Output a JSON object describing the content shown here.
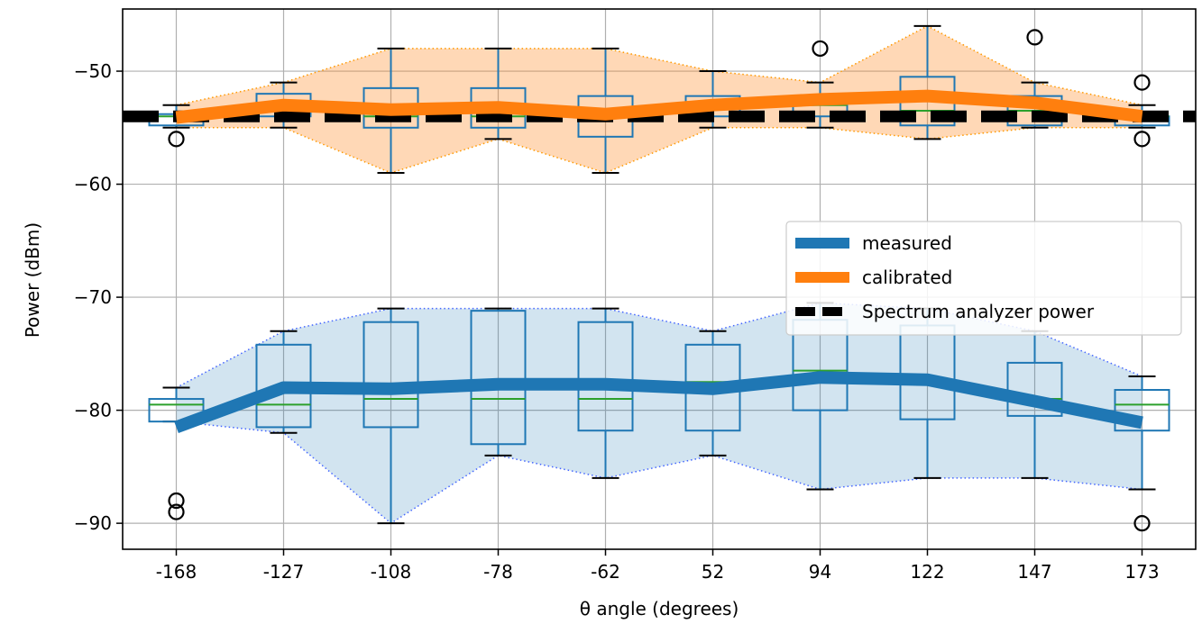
{
  "chart_data": {
    "type": "box",
    "categories": [
      "-168",
      "-127",
      "-108",
      "-78",
      "-62",
      "52",
      "94",
      "122",
      "147",
      "173"
    ],
    "xlabel": "θ angle (degrees)",
    "ylabel": "Power (dBm)",
    "ylim": [
      -92.3,
      -44.5
    ],
    "yticks": [
      -90,
      -80,
      -70,
      -60,
      -50
    ],
    "ytick_labels": [
      "−90",
      "−80",
      "−70",
      "−60",
      "−50"
    ],
    "grid": true,
    "legend_position": "center-right",
    "series": [
      {
        "name": "measured",
        "color": "#1f77b4",
        "line": [
          -81.5,
          -78.0,
          -78.1,
          -77.7,
          -77.7,
          -78.1,
          -77.1,
          -77.3,
          -79.2,
          -81.1
        ],
        "band_upper": [
          -78,
          -73,
          -71,
          -71,
          -71,
          -73,
          -70.5,
          -71,
          -73,
          -77
        ],
        "band_lower": [
          -81,
          -82,
          -90,
          -84,
          -86,
          -84,
          -87,
          -86,
          -86,
          -87
        ],
        "boxes": [
          {
            "whisker_low": -81,
            "q1": -81,
            "median": -79.5,
            "q3": -79,
            "whisker_high": -78,
            "fliers": [
              -88,
              -89
            ]
          },
          {
            "whisker_low": -82,
            "q1": -81.5,
            "median": -79.5,
            "q3": -74.2,
            "whisker_high": -73,
            "fliers": []
          },
          {
            "whisker_low": -90,
            "q1": -81.5,
            "median": -79,
            "q3": -72.2,
            "whisker_high": -71,
            "fliers": []
          },
          {
            "whisker_low": -84,
            "q1": -83,
            "median": -79,
            "q3": -71.2,
            "whisker_high": -71,
            "fliers": []
          },
          {
            "whisker_low": -86,
            "q1": -81.8,
            "median": -79,
            "q3": -72.2,
            "whisker_high": -71,
            "fliers": []
          },
          {
            "whisker_low": -84,
            "q1": -81.8,
            "median": -77.5,
            "q3": -74.2,
            "whisker_high": -73,
            "fliers": []
          },
          {
            "whisker_low": -87,
            "q1": -80,
            "median": -76.5,
            "q3": -72,
            "whisker_high": -70.5,
            "fliers": []
          },
          {
            "whisker_low": -86,
            "q1": -80.8,
            "median": -77.5,
            "q3": -72.5,
            "whisker_high": -71,
            "fliers": []
          },
          {
            "whisker_low": -86,
            "q1": -80.5,
            "median": -79,
            "q3": -75.8,
            "whisker_high": -73,
            "fliers": []
          },
          {
            "whisker_low": -87,
            "q1": -81.8,
            "median": -79.5,
            "q3": -78.2,
            "whisker_high": -77,
            "fliers": [
              -90
            ]
          }
        ]
      },
      {
        "name": "calibrated",
        "color": "#ff7f0e",
        "line": [
          -54.1,
          -53.0,
          -53.4,
          -53.2,
          -53.8,
          -53.0,
          -52.5,
          -52.2,
          -52.8,
          -54.0
        ],
        "band_upper": [
          -53,
          -51,
          -48,
          -48,
          -48,
          -50,
          -51,
          -46,
          -51,
          -53
        ],
        "band_lower": [
          -55,
          -55,
          -59,
          -56,
          -59,
          -55,
          -55,
          -56,
          -55,
          -55
        ],
        "boxes": [
          {
            "whisker_low": -55,
            "q1": -54.8,
            "median": -54,
            "q3": -53.8,
            "whisker_high": -53,
            "fliers": [
              -56
            ]
          },
          {
            "whisker_low": -55,
            "q1": -54,
            "median": -53.5,
            "q3": -52,
            "whisker_high": -51,
            "fliers": []
          },
          {
            "whisker_low": -59,
            "q1": -55,
            "median": -54,
            "q3": -51.5,
            "whisker_high": -48,
            "fliers": []
          },
          {
            "whisker_low": -56,
            "q1": -55,
            "median": -54,
            "q3": -51.5,
            "whisker_high": -48,
            "fliers": []
          },
          {
            "whisker_low": -59,
            "q1": -55.8,
            "median": -54,
            "q3": -52.2,
            "whisker_high": -48,
            "fliers": []
          },
          {
            "whisker_low": -55,
            "q1": -54,
            "median": -53,
            "q3": -52.2,
            "whisker_high": -50,
            "fliers": []
          },
          {
            "whisker_low": -55,
            "q1": -54,
            "median": -53,
            "q3": -52.5,
            "whisker_high": -51,
            "fliers": [
              -48
            ]
          },
          {
            "whisker_low": -56,
            "q1": -54.8,
            "median": -53.5,
            "q3": -50.5,
            "whisker_high": -46,
            "fliers": []
          },
          {
            "whisker_low": -55,
            "q1": -54.8,
            "median": -53.5,
            "q3": -52.2,
            "whisker_high": -51,
            "fliers": [
              -47
            ]
          },
          {
            "whisker_low": -55,
            "q1": -54.8,
            "median": -54,
            "q3": -54,
            "whisker_high": -53,
            "fliers": [
              -51,
              -56
            ]
          }
        ]
      },
      {
        "name": "Spectrum analyzer power",
        "color": "#000000",
        "value": -54
      }
    ],
    "median_color": "#2ca02c"
  }
}
